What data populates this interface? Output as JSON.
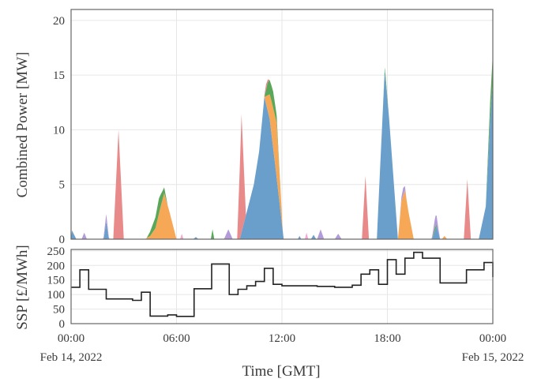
{
  "chart_data": [
    {
      "type": "area",
      "stacked": true,
      "ylabel": "Combined Power [MW]",
      "xlim": [
        0,
        24
      ],
      "ylim": [
        0,
        21
      ],
      "y_ticks": [
        0,
        5,
        10,
        15,
        20
      ],
      "grid": true,
      "legend": "none",
      "series": [
        {
          "color": "#6a9fcc",
          "points": [
            [
              0,
              0
            ],
            [
              0.05,
              0.8
            ],
            [
              0.3,
              0
            ],
            [
              1.85,
              0
            ],
            [
              2.0,
              1.6
            ],
            [
              2.15,
              0
            ],
            [
              6.95,
              0
            ],
            [
              7.1,
              0.2
            ],
            [
              7.25,
              0
            ],
            [
              9.6,
              0
            ],
            [
              10.4,
              5
            ],
            [
              10.7,
              8
            ],
            [
              11.0,
              13
            ],
            [
              11.3,
              11
            ],
            [
              11.6,
              7
            ],
            [
              12.1,
              0
            ],
            [
              12.9,
              0
            ],
            [
              13.0,
              0.3
            ],
            [
              13.1,
              0
            ],
            [
              13.65,
              0
            ],
            [
              13.8,
              0.4
            ],
            [
              13.95,
              0
            ],
            [
              17.4,
              0
            ],
            [
              17.6,
              7
            ],
            [
              17.85,
              15.4
            ],
            [
              18.1,
              11
            ],
            [
              18.6,
              0
            ],
            [
              20.55,
              0
            ],
            [
              20.8,
              1.2
            ],
            [
              21.0,
              0
            ],
            [
              23.2,
              0
            ],
            [
              23.6,
              3
            ],
            [
              23.85,
              11
            ],
            [
              24.0,
              14.5
            ]
          ]
        },
        {
          "color": "#f7a857",
          "points": [
            [
              0,
              0
            ],
            [
              4.2,
              0
            ],
            [
              4.5,
              0.3
            ],
            [
              4.8,
              1.0
            ],
            [
              5.1,
              3.0
            ],
            [
              5.3,
              4.2
            ],
            [
              5.6,
              2.5
            ],
            [
              6.0,
              0
            ],
            [
              11.0,
              0
            ],
            [
              11.4,
              3.0
            ],
            [
              11.7,
              5.0
            ],
            [
              12.05,
              0
            ],
            [
              18.6,
              0
            ],
            [
              18.8,
              3.5
            ],
            [
              19.0,
              4.5
            ],
            [
              19.2,
              2.5
            ],
            [
              19.5,
              0
            ],
            [
              21.1,
              0
            ],
            [
              21.25,
              0.3
            ],
            [
              21.4,
              0
            ]
          ]
        },
        {
          "color": "#5aa75a",
          "points": [
            [
              0,
              0
            ],
            [
              4.3,
              0
            ],
            [
              4.7,
              0.8
            ],
            [
              5.0,
              1.4
            ],
            [
              5.2,
              0.8
            ],
            [
              5.5,
              0
            ],
            [
              7.95,
              0
            ],
            [
              8.05,
              0.9
            ],
            [
              8.15,
              0
            ],
            [
              11.0,
              0
            ],
            [
              11.2,
              1.2
            ],
            [
              11.5,
              1.5
            ],
            [
              11.8,
              0.3
            ],
            [
              12.0,
              0
            ],
            [
              17.7,
              0
            ],
            [
              17.9,
              0.4
            ],
            [
              18.1,
              0
            ],
            [
              20.5,
              0
            ],
            [
              20.7,
              0.3
            ],
            [
              20.9,
              0
            ],
            [
              23.6,
              0
            ],
            [
              23.85,
              1.6
            ],
            [
              24.0,
              2.5
            ]
          ]
        },
        {
          "color": "#b39ad8",
          "points": [
            [
              0,
              0
            ],
            [
              0.6,
              0
            ],
            [
              0.75,
              0.6
            ],
            [
              0.9,
              0
            ],
            [
              1.8,
              0
            ],
            [
              2.0,
              0.7
            ],
            [
              2.2,
              0
            ],
            [
              8.7,
              0
            ],
            [
              8.95,
              0.9
            ],
            [
              9.2,
              0
            ],
            [
              14.0,
              0
            ],
            [
              14.2,
              0.9
            ],
            [
              14.4,
              0
            ],
            [
              15.0,
              0
            ],
            [
              15.2,
              0.5
            ],
            [
              15.4,
              0
            ],
            [
              18.7,
              0
            ],
            [
              18.9,
              0.7
            ],
            [
              19.1,
              0
            ],
            [
              20.5,
              0
            ],
            [
              20.75,
              1.0
            ],
            [
              21.0,
              0
            ]
          ]
        },
        {
          "color": "#e88a8a",
          "points": [
            [
              0,
              0
            ],
            [
              2.4,
              0
            ],
            [
              2.7,
              10
            ],
            [
              3.0,
              0
            ],
            [
              9.45,
              0
            ],
            [
              9.7,
              10.8
            ],
            [
              9.95,
              0
            ],
            [
              10.95,
              0
            ],
            [
              11.1,
              0.5
            ],
            [
              11.3,
              0
            ],
            [
              16.55,
              0
            ],
            [
              16.75,
              5.8
            ],
            [
              16.95,
              0
            ],
            [
              22.35,
              0
            ],
            [
              22.55,
              5.5
            ],
            [
              22.75,
              0
            ]
          ]
        },
        {
          "color": "#f2a8cf",
          "points": [
            [
              0,
              0
            ],
            [
              6.2,
              0
            ],
            [
              6.3,
              0.5
            ],
            [
              6.4,
              0
            ],
            [
              13.3,
              0
            ],
            [
              13.4,
              0.6
            ],
            [
              13.5,
              0
            ]
          ]
        }
      ]
    },
    {
      "type": "line",
      "step": true,
      "ylabel": "SSP [£/MWh]",
      "xlabel": "Time [GMT]",
      "xlim": [
        0,
        24
      ],
      "ylim": [
        0,
        255
      ],
      "y_ticks": [
        0,
        50,
        100,
        150,
        200,
        250
      ],
      "x_ticks": [
        {
          "x": 0,
          "line1": "00:00",
          "line2": "Feb 14, 2022"
        },
        {
          "x": 6,
          "line1": "06:00",
          "line2": ""
        },
        {
          "x": 12,
          "line1": "12:00",
          "line2": ""
        },
        {
          "x": 18,
          "line1": "18:00",
          "line2": ""
        },
        {
          "x": 24,
          "line1": "00:00",
          "line2": "Feb 15, 2022"
        }
      ],
      "grid": true,
      "color": "#222222",
      "points": [
        [
          0,
          125
        ],
        [
          0.5,
          185
        ],
        [
          1.0,
          118
        ],
        [
          2.0,
          85
        ],
        [
          3.5,
          80
        ],
        [
          4.0,
          108
        ],
        [
          4.5,
          26
        ],
        [
          5.5,
          30
        ],
        [
          6.0,
          25
        ],
        [
          7.0,
          120
        ],
        [
          8.0,
          205
        ],
        [
          9.0,
          100
        ],
        [
          9.5,
          118
        ],
        [
          10.0,
          130
        ],
        [
          10.5,
          145
        ],
        [
          11.0,
          190
        ],
        [
          11.5,
          135
        ],
        [
          12.0,
          130
        ],
        [
          14.0,
          128
        ],
        [
          15.0,
          125
        ],
        [
          16.0,
          132
        ],
        [
          16.5,
          170
        ],
        [
          17.0,
          185
        ],
        [
          17.5,
          135
        ],
        [
          18.0,
          220
        ],
        [
          18.5,
          170
        ],
        [
          19.0,
          225
        ],
        [
          19.5,
          245
        ],
        [
          20.0,
          225
        ],
        [
          21.0,
          140
        ],
        [
          22.5,
          185
        ],
        [
          23.5,
          210
        ],
        [
          24.0,
          160
        ]
      ]
    }
  ]
}
